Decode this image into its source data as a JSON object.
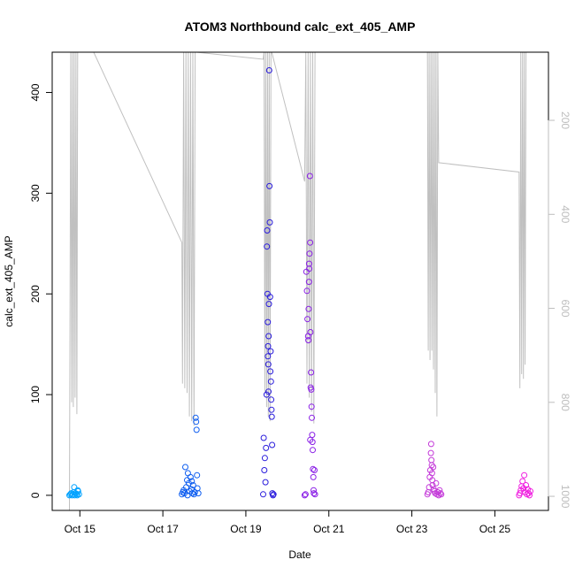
{
  "chart_data": {
    "type": "scatter",
    "title": "ATOM3 Northbound calc_ext_405_AMP",
    "xlabel": "Date",
    "ylabel": "calc_ext_405_AMP",
    "x_is_date": true,
    "xlim": [
      "2016-10-14 08:00",
      "2016-10-26 07:00"
    ],
    "xticks": [
      {
        "x": "2016-10-15",
        "label": "Oct 15"
      },
      {
        "x": "2016-10-17",
        "label": "Oct 17"
      },
      {
        "x": "2016-10-19",
        "label": "Oct 19"
      },
      {
        "x": "2016-10-21",
        "label": "Oct 21"
      },
      {
        "x": "2016-10-23",
        "label": "Oct 23"
      },
      {
        "x": "2016-10-25",
        "label": "Oct 25"
      }
    ],
    "ylim": [
      -15,
      440
    ],
    "yticks": [
      0,
      100,
      200,
      300,
      400
    ],
    "y2": {
      "reversed": true,
      "lim": [
        1030,
        55
      ],
      "ticks": [
        200,
        400,
        600,
        800,
        1000
      ],
      "color": "#bdbdbd"
    },
    "grid": false,
    "series": [
      {
        "color": "#00a2ff",
        "points": [
          [
            "2016-10-14 18:00",
            0
          ],
          [
            "2016-10-14 18:30",
            1
          ],
          [
            "2016-10-14 19:00",
            2
          ],
          [
            "2016-10-14 19:30",
            0
          ],
          [
            "2016-10-14 20:00",
            1
          ],
          [
            "2016-10-14 20:30",
            3
          ],
          [
            "2016-10-14 21:00",
            0
          ],
          [
            "2016-10-14 21:30",
            2
          ],
          [
            "2016-10-14 22:00",
            1
          ],
          [
            "2016-10-14 22:30",
            0
          ],
          [
            "2016-10-14 23:00",
            4
          ],
          [
            "2016-10-14 23:30",
            1
          ],
          [
            "2016-10-14 20:45",
            8
          ],
          [
            "2016-10-14 22:45",
            5
          ]
        ]
      },
      {
        "color": "#0f5ef0",
        "points": [
          [
            "2016-10-17 11:00",
            1
          ],
          [
            "2016-10-17 11:30",
            3
          ],
          [
            "2016-10-17 12:00",
            5
          ],
          [
            "2016-10-17 12:30",
            2
          ],
          [
            "2016-10-17 13:00",
            28
          ],
          [
            "2016-10-17 13:30",
            8
          ],
          [
            "2016-10-17 14:00",
            15
          ],
          [
            "2016-10-17 14:30",
            22
          ],
          [
            "2016-10-17 15:00",
            12
          ],
          [
            "2016-10-17 15:30",
            4
          ],
          [
            "2016-10-17 16:00",
            18
          ],
          [
            "2016-10-17 16:30",
            6
          ],
          [
            "2016-10-17 17:00",
            2
          ],
          [
            "2016-10-17 17:30",
            10
          ],
          [
            "2016-10-17 18:00",
            1
          ],
          [
            "2016-10-17 18:30",
            3
          ],
          [
            "2016-10-17 19:00",
            77
          ],
          [
            "2016-10-17 19:15",
            73
          ],
          [
            "2016-10-17 19:30",
            65
          ],
          [
            "2016-10-17 19:45",
            20
          ],
          [
            "2016-10-17 20:00",
            7
          ],
          [
            "2016-10-17 20:30",
            2
          ],
          [
            "2016-10-17 14:15",
            0
          ],
          [
            "2016-10-17 16:45",
            14
          ]
        ]
      },
      {
        "color": "#2a1cdc",
        "points": [
          [
            "2016-10-19 10:00",
            1
          ],
          [
            "2016-10-19 10:20",
            57
          ],
          [
            "2016-10-19 10:40",
            25
          ],
          [
            "2016-10-19 11:00",
            37
          ],
          [
            "2016-10-19 11:20",
            13
          ],
          [
            "2016-10-19 11:40",
            47
          ],
          [
            "2016-10-19 12:00",
            100
          ],
          [
            "2016-10-19 12:10",
            247
          ],
          [
            "2016-10-19 12:20",
            263
          ],
          [
            "2016-10-19 12:30",
            200
          ],
          [
            "2016-10-19 12:40",
            172
          ],
          [
            "2016-10-19 12:50",
            148
          ],
          [
            "2016-10-19 13:00",
            130
          ],
          [
            "2016-10-19 13:10",
            158
          ],
          [
            "2016-10-19 13:20",
            190
          ],
          [
            "2016-10-19 13:30",
            422
          ],
          [
            "2016-10-19 13:40",
            307
          ],
          [
            "2016-10-19 13:50",
            271
          ],
          [
            "2016-10-19 14:00",
            197
          ],
          [
            "2016-10-19 14:10",
            123
          ],
          [
            "2016-10-19 14:20",
            143
          ],
          [
            "2016-10-19 14:30",
            113
          ],
          [
            "2016-10-19 14:40",
            95
          ],
          [
            "2016-10-19 14:50",
            85
          ],
          [
            "2016-10-19 15:00",
            78
          ],
          [
            "2016-10-19 15:10",
            50
          ],
          [
            "2016-10-19 15:20",
            2
          ],
          [
            "2016-10-19 15:40",
            0
          ],
          [
            "2016-10-19 16:00",
            1
          ],
          [
            "2016-10-19 12:45",
            138
          ],
          [
            "2016-10-19 13:05",
            103
          ]
        ]
      },
      {
        "color": "#8a1fe6",
        "points": [
          [
            "2016-10-20 10:00",
            0
          ],
          [
            "2016-10-20 10:30",
            1
          ],
          [
            "2016-10-20 11:00",
            222
          ],
          [
            "2016-10-20 11:20",
            203
          ],
          [
            "2016-10-20 11:40",
            175
          ],
          [
            "2016-10-20 12:00",
            158
          ],
          [
            "2016-10-20 12:10",
            154
          ],
          [
            "2016-10-20 12:20",
            185
          ],
          [
            "2016-10-20 12:30",
            212
          ],
          [
            "2016-10-20 12:40",
            225
          ],
          [
            "2016-10-20 12:50",
            240
          ],
          [
            "2016-10-20 13:00",
            317
          ],
          [
            "2016-10-20 13:10",
            251
          ],
          [
            "2016-10-20 13:20",
            162
          ],
          [
            "2016-10-20 13:30",
            107
          ],
          [
            "2016-10-20 13:40",
            122
          ],
          [
            "2016-10-20 13:50",
            105
          ],
          [
            "2016-10-20 14:00",
            88
          ],
          [
            "2016-10-20 14:10",
            77
          ],
          [
            "2016-10-20 14:20",
            60
          ],
          [
            "2016-10-20 14:30",
            53
          ],
          [
            "2016-10-20 14:40",
            45
          ],
          [
            "2016-10-20 14:50",
            26
          ],
          [
            "2016-10-20 15:00",
            18
          ],
          [
            "2016-10-20 15:10",
            5
          ],
          [
            "2016-10-20 15:20",
            2
          ],
          [
            "2016-10-20 15:40",
            25
          ],
          [
            "2016-10-20 16:00",
            1
          ],
          [
            "2016-10-20 12:35",
            230
          ],
          [
            "2016-10-20 13:15",
            55
          ]
        ]
      },
      {
        "color": "#c43ad9",
        "points": [
          [
            "2016-10-23 09:00",
            1
          ],
          [
            "2016-10-23 09:30",
            3
          ],
          [
            "2016-10-23 10:00",
            8
          ],
          [
            "2016-10-23 10:20",
            18
          ],
          [
            "2016-10-23 10:40",
            25
          ],
          [
            "2016-10-23 11:00",
            42
          ],
          [
            "2016-10-23 11:10",
            51
          ],
          [
            "2016-10-23 11:20",
            35
          ],
          [
            "2016-10-23 11:30",
            30
          ],
          [
            "2016-10-23 11:40",
            22
          ],
          [
            "2016-10-23 11:50",
            15
          ],
          [
            "2016-10-23 12:00",
            10
          ],
          [
            "2016-10-23 12:20",
            28
          ],
          [
            "2016-10-23 12:40",
            6
          ],
          [
            "2016-10-23 13:00",
            4
          ],
          [
            "2016-10-23 13:30",
            2
          ],
          [
            "2016-10-23 14:00",
            12
          ],
          [
            "2016-10-23 14:30",
            1
          ],
          [
            "2016-10-23 15:00",
            3
          ],
          [
            "2016-10-23 15:30",
            0
          ],
          [
            "2016-10-23 16:00",
            5
          ],
          [
            "2016-10-23 16:30",
            2
          ],
          [
            "2016-10-23 17:00",
            1
          ]
        ]
      },
      {
        "color": "#f01fe0",
        "points": [
          [
            "2016-10-25 14:00",
            0
          ],
          [
            "2016-10-25 14:30",
            2
          ],
          [
            "2016-10-25 15:00",
            5
          ],
          [
            "2016-10-25 15:30",
            9
          ],
          [
            "2016-10-25 16:00",
            14
          ],
          [
            "2016-10-25 16:30",
            7
          ],
          [
            "2016-10-25 17:00",
            20
          ],
          [
            "2016-10-25 17:30",
            3
          ],
          [
            "2016-10-25 18:00",
            10
          ],
          [
            "2016-10-25 18:30",
            1
          ],
          [
            "2016-10-25 19:00",
            6
          ],
          [
            "2016-10-25 19:30",
            2
          ],
          [
            "2016-10-25 20:00",
            0
          ],
          [
            "2016-10-25 20:30",
            4
          ]
        ]
      }
    ],
    "depth_line": {
      "axis": "y2",
      "color": "#c0c0c0",
      "points": [
        [
          "2016-10-14 18:00",
          1030
        ],
        [
          "2016-10-14 18:45",
          55
        ],
        [
          "2016-10-14 19:15",
          800
        ],
        [
          "2016-10-14 19:45",
          55
        ],
        [
          "2016-10-14 20:15",
          810
        ],
        [
          "2016-10-14 20:45",
          55
        ],
        [
          "2016-10-14 21:15",
          790
        ],
        [
          "2016-10-14 21:45",
          55
        ],
        [
          "2016-10-14 22:15",
          825
        ],
        [
          "2016-10-14 22:45",
          55
        ],
        [
          "2016-10-15 08:00",
          55
        ],
        [
          "2016-10-17 11:00",
          460
        ],
        [
          "2016-10-17 11:20",
          760
        ],
        [
          "2016-10-17 12:00",
          55
        ],
        [
          "2016-10-17 12:40",
          770
        ],
        [
          "2016-10-17 13:20",
          55
        ],
        [
          "2016-10-17 14:00",
          780
        ],
        [
          "2016-10-17 14:40",
          55
        ],
        [
          "2016-10-17 15:20",
          830
        ],
        [
          "2016-10-17 16:00",
          55
        ],
        [
          "2016-10-17 16:40",
          840
        ],
        [
          "2016-10-17 17:20",
          55
        ],
        [
          "2016-10-17 18:00",
          850
        ],
        [
          "2016-10-17 18:40",
          55
        ],
        [
          "2016-10-17 19:20",
          55
        ],
        [
          "2016-10-19 10:00",
          70
        ],
        [
          "2016-10-19 10:30",
          55
        ],
        [
          "2016-10-19 11:00",
          780
        ],
        [
          "2016-10-19 11:30",
          55
        ],
        [
          "2016-10-19 12:00",
          810
        ],
        [
          "2016-10-19 12:30",
          55
        ],
        [
          "2016-10-19 13:00",
          830
        ],
        [
          "2016-10-19 13:30",
          55
        ],
        [
          "2016-10-19 14:00",
          840
        ],
        [
          "2016-10-19 14:30",
          55
        ],
        [
          "2016-10-19 15:00",
          55
        ],
        [
          "2016-10-20 10:00",
          330
        ],
        [
          "2016-10-20 10:40",
          55
        ],
        [
          "2016-10-20 11:20",
          760
        ],
        [
          "2016-10-20 12:00",
          55
        ],
        [
          "2016-10-20 12:40",
          790
        ],
        [
          "2016-10-20 13:20",
          55
        ],
        [
          "2016-10-20 14:00",
          820
        ],
        [
          "2016-10-20 14:40",
          55
        ],
        [
          "2016-10-20 15:20",
          845
        ],
        [
          "2016-10-20 16:00",
          55
        ],
        [
          "2016-10-23 09:00",
          55
        ],
        [
          "2016-10-23 09:30",
          690
        ],
        [
          "2016-10-23 10:00",
          55
        ],
        [
          "2016-10-23 10:30",
          710
        ],
        [
          "2016-10-23 11:00",
          55
        ],
        [
          "2016-10-23 11:30",
          690
        ],
        [
          "2016-10-23 12:00",
          55
        ],
        [
          "2016-10-23 12:30",
          730
        ],
        [
          "2016-10-23 13:00",
          55
        ],
        [
          "2016-10-23 13:30",
          780
        ],
        [
          "2016-10-23 14:00",
          55
        ],
        [
          "2016-10-23 14:30",
          830
        ],
        [
          "2016-10-23 15:00",
          55
        ],
        [
          "2016-10-23 15:30",
          290
        ],
        [
          "2016-10-25 14:00",
          310
        ],
        [
          "2016-10-25 14:30",
          770
        ],
        [
          "2016-10-25 15:00",
          55
        ],
        [
          "2016-10-25 15:30",
          740
        ],
        [
          "2016-10-25 16:00",
          55
        ],
        [
          "2016-10-25 16:30",
          750
        ],
        [
          "2016-10-25 17:00",
          55
        ],
        [
          "2016-10-25 17:30",
          720
        ],
        [
          "2016-10-25 18:00",
          55
        ]
      ]
    }
  }
}
